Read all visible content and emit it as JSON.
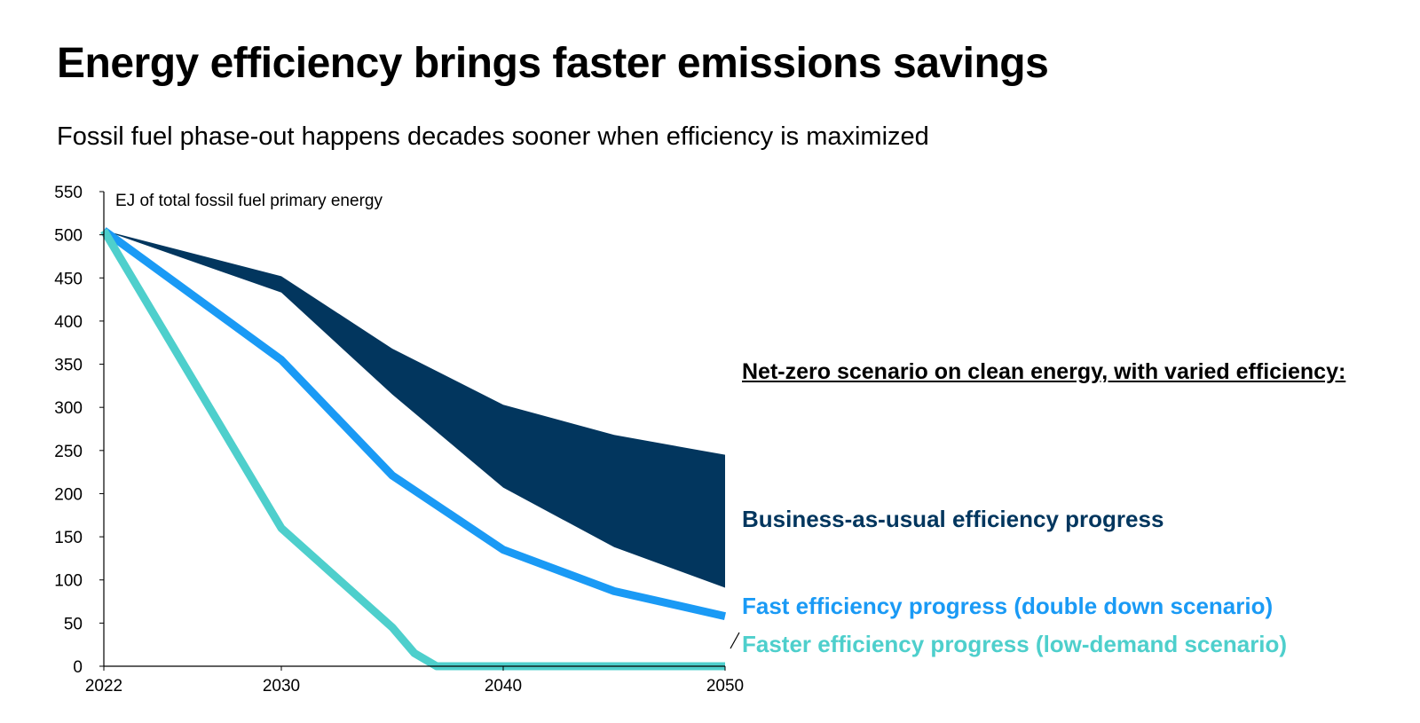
{
  "chart_data": {
    "type": "area",
    "title": "Energy efficiency brings faster emissions savings",
    "subtitle": "Fossil fuel phase-out happens decades sooner when efficiency is maximized",
    "ylabel": "EJ of total fossil fuel primary energy",
    "xlabel": "",
    "xlim": [
      2022,
      2050
    ],
    "ylim": [
      0,
      550
    ],
    "x_ticks": [
      2022,
      2030,
      2040,
      2050
    ],
    "y_ticks": [
      0,
      50,
      100,
      150,
      200,
      250,
      300,
      350,
      400,
      450,
      500,
      550
    ],
    "legend_title": "Net-zero scenario on clean energy, with varied efficiency:",
    "series": [
      {
        "name": "Business-as-usual efficiency progress",
        "kind": "band",
        "color": "#02365e",
        "x": [
          2022,
          2030,
          2035,
          2040,
          2045,
          2050
        ],
        "upper": [
          505,
          452,
          368,
          303,
          268,
          245
        ],
        "lower": [
          505,
          433,
          315,
          207,
          138,
          91
        ]
      },
      {
        "name": "Fast efficiency progress (double down scenario)",
        "kind": "line",
        "color": "#1a9af5",
        "x": [
          2022,
          2030,
          2035,
          2040,
          2045,
          2050
        ],
        "values": [
          505,
          355,
          221,
          135,
          87,
          58
        ]
      },
      {
        "name": "Faster efficiency progress (low-demand scenario)",
        "kind": "line",
        "color": "#4ecfcc",
        "x": [
          2022,
          2030,
          2035,
          2036,
          2037,
          2040,
          2045,
          2050
        ],
        "values": [
          505,
          160,
          45,
          15,
          0,
          0,
          0,
          0
        ]
      }
    ]
  }
}
